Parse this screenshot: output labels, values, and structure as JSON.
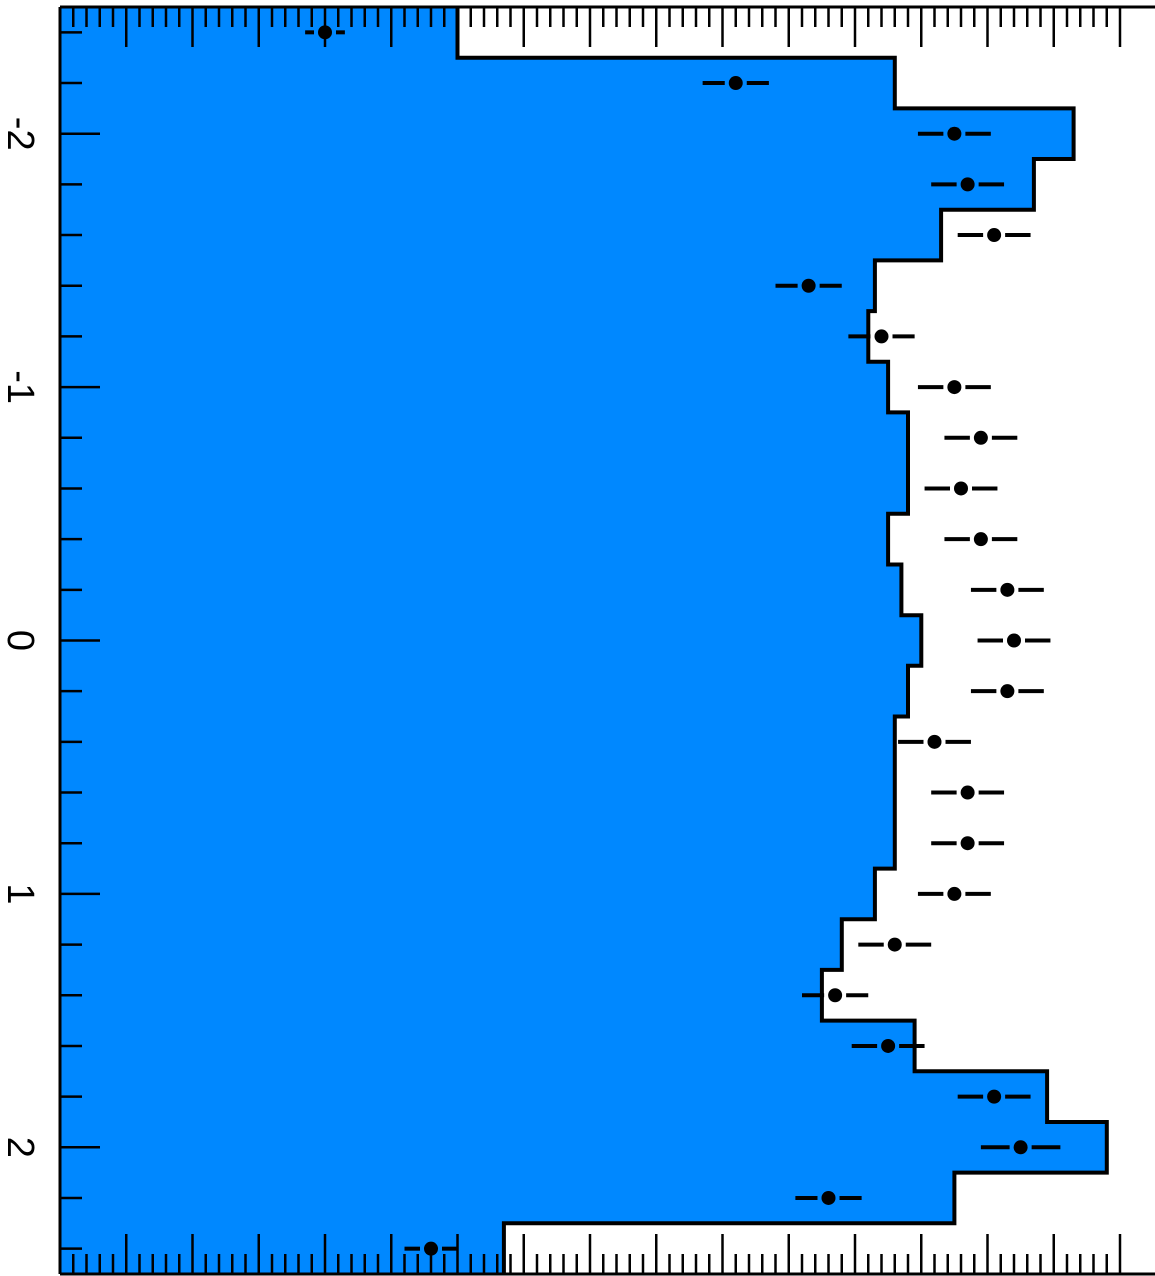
{
  "chart_data": {
    "type": "area",
    "orientation": "rotated-90",
    "title": "",
    "xlabel": "",
    "ylabel": "",
    "xlim": [
      -2.5,
      2.5
    ],
    "ylim": [
      0,
      160
    ],
    "bins": 25,
    "x_ticks": [
      "-2",
      "-1",
      "0",
      "1",
      "2"
    ],
    "histogram": {
      "values": [
        60,
        126,
        153,
        147,
        133,
        123,
        122,
        125,
        128,
        128,
        125,
        127,
        130,
        128,
        126,
        126,
        126,
        123,
        118,
        115,
        129,
        149,
        158,
        135,
        67
      ],
      "fill_color": "#0088ff",
      "edge_color": "#000000"
    },
    "points": {
      "x": [
        -2.4,
        -2.2,
        -2.0,
        -1.8,
        -1.6,
        -1.4,
        -1.2,
        -1.0,
        -0.8,
        -0.6,
        -0.4,
        -0.2,
        0.0,
        0.2,
        0.4,
        0.6,
        0.8,
        1.0,
        1.2,
        1.4,
        1.6,
        1.8,
        2.0,
        2.2,
        2.4
      ],
      "y": [
        40,
        102,
        135,
        137,
        141,
        113,
        124,
        135,
        139,
        136,
        139,
        143,
        144,
        143,
        132,
        137,
        137,
        135,
        126,
        117,
        125,
        141,
        145,
        116,
        56
      ],
      "yerr": [
        3,
        5,
        5.5,
        5.5,
        5.5,
        5,
        5,
        5.5,
        5.5,
        5.5,
        5.5,
        5.5,
        5.5,
        5.5,
        5.5,
        5.5,
        5.5,
        5.5,
        5.5,
        5,
        5.5,
        5.5,
        6,
        5,
        4
      ],
      "color": "#000000"
    }
  }
}
